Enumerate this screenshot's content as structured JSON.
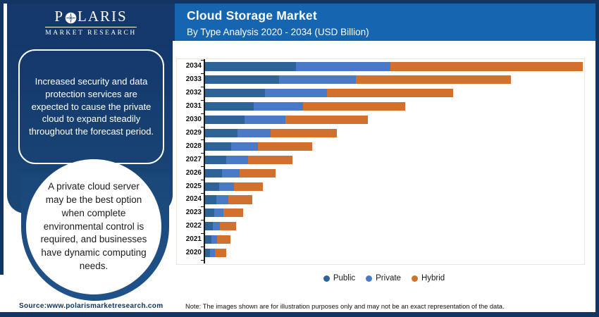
{
  "brand": {
    "name_p": "P",
    "name_rest": "LARIS",
    "subtitle": "MARKET RESEARCH"
  },
  "header": {
    "title": "Cloud Storage Market",
    "subtitle": "By Type Analysis 2020 - 2034 (USD Billion)",
    "background": "#1565b0"
  },
  "sidebar": {
    "navy_top": "#14386b",
    "navy_bottom": "#20528a",
    "callout1": "Increased security and data protection services are expected to cause the private cloud to expand steadily throughout the forecast period.",
    "callout2": "A private cloud server may be the best option when complete environmental control is required, and businesses have dynamic computing needs."
  },
  "chart_data": {
    "type": "bar",
    "orientation": "horizontal",
    "stacked": true,
    "title": "Cloud Storage Market",
    "subtitle": "By Type Analysis 2020 - 2034 (USD Billion)",
    "unit": "USD Billion",
    "value_axis_visible": false,
    "legend_position": "bottom",
    "grid": false,
    "xlim": [
      0,
      540
    ],
    "categories": [
      "2034",
      "2033",
      "2032",
      "2031",
      "2030",
      "2029",
      "2028",
      "2027",
      "2026",
      "2025",
      "2024",
      "2023",
      "2022",
      "2021",
      "2020"
    ],
    "series": [
      {
        "name": "Public",
        "color": "#2d6396",
        "values": [
          129,
          105,
          85,
          69,
          56,
          46,
          37,
          30,
          24,
          20,
          16,
          13,
          11,
          9,
          7
        ]
      },
      {
        "name": "Private",
        "color": "#4a79c6",
        "values": [
          135,
          110,
          89,
          71,
          58,
          47,
          38,
          31,
          25,
          21,
          17,
          13,
          10,
          8,
          7
        ]
      },
      {
        "name": "Hybrid",
        "color": "#d2712e",
        "values": [
          274,
          221,
          179,
          145,
          118,
          95,
          78,
          63,
          51,
          41,
          34,
          28,
          23,
          19,
          16
        ]
      }
    ],
    "totals": [
      538,
      436,
      353,
      285,
      232,
      188,
      153,
      124,
      100,
      82,
      67,
      54,
      44,
      36,
      30
    ]
  },
  "footer": {
    "source": "Source:www.polarismarketresearch.com",
    "note": "Note: The images shown are for illustration purposes only and may not be an exact representation of the data.",
    "bar_color": "#123561"
  }
}
